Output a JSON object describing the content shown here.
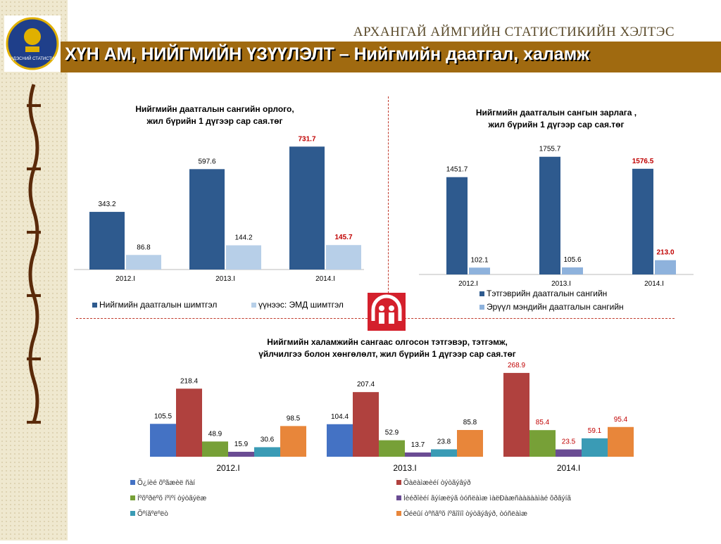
{
  "header": {
    "org": "АРХАНГАЙ АЙМГИЙН СТАТИСТИКИЙН ХЭЛТЭС",
    "title": "ХҮН АМ, НИЙГМИЙН ҮЗҮҮЛЭЛТ – Нийгмийн даатгал, халамж",
    "logo_text": "ҮНДЭСНИЙ СТАТИСТИК"
  },
  "colors": {
    "dark_blue": "#2e5a8e",
    "light_blue": "#b7cfe8",
    "mid_blue": "#8eb2dc",
    "s_blue": "#4472c4",
    "s_red": "#b0413e",
    "s_green": "#77a037",
    "s_purple": "#6a4c93",
    "s_teal": "#3a9bb5",
    "s_orange": "#e8863a",
    "highlight": "#c00000",
    "bar_brown": "#a06a10"
  },
  "chart_data": [
    {
      "type": "bar",
      "title": "Нийгмийн даатгалын сангийн орлого,\nжил бүрийн 1 дүгээр сар сая.төг",
      "categories": [
        "2012.I",
        "2013.I",
        "2014.I"
      ],
      "series": [
        {
          "name": "Нийгмийн даатгалын шимтгэл",
          "values": [
            343.2,
            597.6,
            731.7
          ],
          "labels": [
            "343.2",
            "597.6",
            "731.7"
          ]
        },
        {
          "name": "үүнээс: ЭМД шимтгэл",
          "values": [
            86.8,
            144.2,
            145.7
          ],
          "labels": [
            "86.8",
            "144.2",
            "145.7"
          ]
        }
      ],
      "highlight_index": 2,
      "ylim": [
        0,
        800
      ],
      "legend": "bottom"
    },
    {
      "type": "bar",
      "title": "Нийгмийн даатгалын сангын зарлага ,\nжил бүрийн 1 дүгээр сар сая.төг",
      "categories": [
        "2012.I",
        "2013.I",
        "2014.I"
      ],
      "series": [
        {
          "name": "Тэтгэврийн даатгалын сангийн",
          "values": [
            1451.7,
            1755.7,
            1576.5
          ],
          "labels": [
            "1451.7",
            "1755.7",
            "1576.5"
          ]
        },
        {
          "name": "Эрүүл мэндийн даатгалын сангийн",
          "values": [
            102.1,
            105.6,
            213.0
          ],
          "labels": [
            "102.1",
            "105.6",
            "213.0"
          ]
        }
      ],
      "highlight_index": 2,
      "ylim": [
        0,
        1900
      ],
      "legend": "bottom"
    },
    {
      "type": "bar",
      "title": "Нийгмийн халамжийн сангаас олгосон тэтгэвэр, тэтгэмж,\nүйлчилгээ болон хөнгөлөлт, жил бүрийн 1 дүгээр сар сая.төг",
      "categories": [
        "2012.I",
        "2013.I",
        "2014.I"
      ],
      "series": [
        {
          "name": "Õ¿íèé õºãæèë ñàí",
          "values": [
            105.5,
            104.4,
            null
          ],
          "labels": [
            "105.5",
            "104.4",
            ""
          ]
        },
        {
          "name": "Õàëàìæèéí òýòãýâýð",
          "values": [
            218.4,
            207.4,
            268.9
          ],
          "labels": [
            "218.4",
            "207.4",
            "268.9"
          ]
        },
        {
          "name": "Íºõºðëºõ íºìºí òýòãýëæ",
          "values": [
            48.9,
            52.9,
            85.4
          ],
          "labels": [
            "48.9",
            "52.9",
            "85.4"
          ]
        },
        {
          "name": "Ìèéðîèéí ãýíæëýã òóñëàìæ ìàëÐàæñààäààìàé õðãýíã",
          "values": [
            15.9,
            13.7,
            23.5
          ],
          "labels": [
            "15.9",
            "13.7",
            "23.5"
          ]
        },
        {
          "name": "Õºíãºëºëò",
          "values": [
            30.6,
            23.8,
            59.1
          ],
          "labels": [
            "30.6",
            "23.8",
            "59.1"
          ]
        },
        {
          "name": "Óéëûí òºñãºõ íºãîîíî òýòãýâýð, òóñëàìæ",
          "values": [
            98.5,
            85.8,
            95.4
          ],
          "labels": [
            "98.5",
            "85.8",
            "95.4"
          ]
        }
      ],
      "highlight_index": 2,
      "ylim": [
        0,
        280
      ],
      "legend": "bottom"
    }
  ]
}
